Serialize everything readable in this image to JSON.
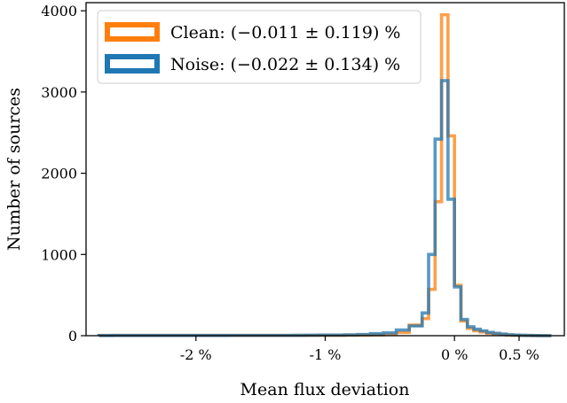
{
  "chart_data": {
    "type": "histogram",
    "title": "",
    "xlabel": "Mean flux deviation",
    "ylabel": "Number of sources",
    "xlim": [
      -2.85,
      0.85
    ],
    "ylim": [
      0,
      4100
    ],
    "x_ticks": [
      {
        "value": -2.0,
        "label": "-2 %"
      },
      {
        "value": -1.0,
        "label": "-1 %"
      },
      {
        "value": 0.0,
        "label": "0 %"
      },
      {
        "value": 0.5,
        "label": "0.5 %"
      }
    ],
    "y_ticks": [
      {
        "value": 0,
        "label": "0"
      },
      {
        "value": 1000,
        "label": "1000"
      },
      {
        "value": 2000,
        "label": "2000"
      },
      {
        "value": 3000,
        "label": "3000"
      },
      {
        "value": 4000,
        "label": "4000"
      }
    ],
    "grid": false,
    "legend_position": "top-left",
    "bin_edges": [
      -2.75,
      -2.65,
      -2.55,
      -2.45,
      -2.35,
      -2.25,
      -2.15,
      -2.05,
      -1.95,
      -1.85,
      -1.75,
      -1.65,
      -1.55,
      -1.45,
      -1.35,
      -1.25,
      -1.15,
      -1.05,
      -0.95,
      -0.85,
      -0.75,
      -0.65,
      -0.55,
      -0.45,
      -0.35,
      -0.25,
      -0.2,
      -0.15,
      -0.1,
      -0.05,
      0.0,
      0.05,
      0.1,
      0.15,
      0.2,
      0.25,
      0.3,
      0.35,
      0.4,
      0.45,
      0.5,
      0.55,
      0.6,
      0.65,
      0.7,
      0.75
    ],
    "series": [
      {
        "name": "Clean: (−0.011 ± 0.119) %",
        "color": "#ff7f0e",
        "counts": [
          3,
          3,
          3,
          3,
          3,
          3,
          3,
          3,
          3,
          3,
          3,
          3,
          3,
          3,
          3,
          3,
          4,
          5,
          5,
          6,
          8,
          10,
          15,
          40,
          130,
          210,
          570,
          1650,
          3950,
          2460,
          620,
          180,
          90,
          60,
          45,
          30,
          20,
          15,
          8,
          5,
          3,
          2,
          1,
          0,
          0
        ]
      },
      {
        "name": "Noise: (−0.022 ± 0.134) %",
        "color": "#1f77b4",
        "counts": [
          2,
          3,
          3,
          3,
          3,
          3,
          3,
          3,
          3,
          3,
          4,
          4,
          4,
          4,
          4,
          5,
          6,
          7,
          8,
          10,
          15,
          25,
          35,
          70,
          120,
          280,
          1000,
          2420,
          3140,
          1680,
          600,
          200,
          110,
          80,
          60,
          40,
          30,
          20,
          12,
          8,
          5,
          3,
          2,
          1,
          0
        ]
      }
    ]
  }
}
